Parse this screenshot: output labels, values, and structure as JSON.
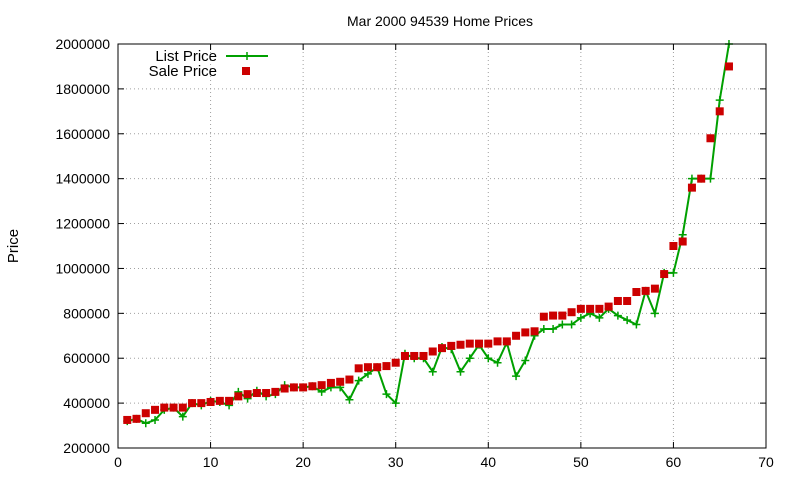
{
  "chart_data": {
    "type": "line",
    "title": "Mar 2000 94539 Home Prices",
    "xlabel": "",
    "ylabel": "Price",
    "xlim": [
      0,
      70
    ],
    "ylim": [
      200000,
      2000000
    ],
    "xticks": [
      0,
      10,
      20,
      30,
      40,
      50,
      60,
      70
    ],
    "yticks": [
      200000,
      400000,
      600000,
      800000,
      1000000,
      1200000,
      1400000,
      1600000,
      1800000,
      2000000
    ],
    "xtick_labels": [
      "0",
      "10",
      "20",
      "30",
      "40",
      "50",
      "60",
      "70"
    ],
    "ytick_labels": [
      "200000",
      "400000",
      "600000",
      "800000",
      "1000000",
      "1200000",
      "1400000",
      "1600000",
      "1800000",
      "2000000"
    ],
    "grid": true,
    "legend_position": "top-left",
    "series": [
      {
        "name": "List Price",
        "style": "line-with-plus-markers",
        "color": "#00a000",
        "x": [
          1,
          2,
          3,
          4,
          5,
          6,
          7,
          8,
          9,
          10,
          11,
          12,
          13,
          14,
          15,
          16,
          17,
          18,
          19,
          20,
          21,
          22,
          23,
          24,
          25,
          26,
          27,
          28,
          29,
          30,
          31,
          32,
          33,
          34,
          35,
          36,
          37,
          38,
          39,
          40,
          41,
          42,
          43,
          44,
          45,
          46,
          47,
          48,
          49,
          50,
          51,
          52,
          53,
          54,
          55,
          56,
          57,
          58,
          59,
          60,
          61,
          62,
          63,
          64,
          65,
          66
        ],
        "values": [
          320000,
          330000,
          310000,
          325000,
          370000,
          380000,
          340000,
          400000,
          390000,
          410000,
          405000,
          390000,
          450000,
          420000,
          455000,
          430000,
          440000,
          480000,
          470000,
          470000,
          475000,
          450000,
          470000,
          470000,
          415000,
          500000,
          530000,
          560000,
          440000,
          400000,
          620000,
          600000,
          600000,
          540000,
          650000,
          640000,
          540000,
          600000,
          660000,
          600000,
          580000,
          670000,
          520000,
          590000,
          700000,
          730000,
          730000,
          750000,
          750000,
          780000,
          800000,
          780000,
          820000,
          790000,
          770000,
          750000,
          900000,
          800000,
          980000,
          980000,
          1150000,
          1400000,
          1400000,
          1400000,
          1750000,
          2000000
        ]
      },
      {
        "name": "Sale Price",
        "style": "square-markers",
        "color": "#cc0000",
        "x": [
          1,
          2,
          3,
          4,
          5,
          6,
          7,
          8,
          9,
          10,
          11,
          12,
          13,
          14,
          15,
          16,
          17,
          18,
          19,
          20,
          21,
          22,
          23,
          24,
          25,
          26,
          27,
          28,
          29,
          30,
          31,
          32,
          33,
          34,
          35,
          36,
          37,
          38,
          39,
          40,
          41,
          42,
          43,
          44,
          45,
          46,
          47,
          48,
          49,
          50,
          51,
          52,
          53,
          54,
          55,
          56,
          57,
          58,
          59,
          60,
          61,
          62,
          63,
          64,
          65,
          66
        ],
        "values": [
          325000,
          330000,
          355000,
          370000,
          380000,
          380000,
          380000,
          400000,
          400000,
          405000,
          410000,
          410000,
          430000,
          440000,
          445000,
          445000,
          450000,
          465000,
          470000,
          470000,
          475000,
          480000,
          490000,
          495000,
          505000,
          555000,
          560000,
          560000,
          565000,
          580000,
          610000,
          610000,
          610000,
          630000,
          645000,
          655000,
          660000,
          665000,
          665000,
          665000,
          675000,
          675000,
          700000,
          715000,
          720000,
          785000,
          790000,
          790000,
          805000,
          820000,
          820000,
          820000,
          830000,
          855000,
          855000,
          895000,
          900000,
          910000,
          975000,
          1100000,
          1120000,
          1360000,
          1400000,
          1580000,
          1700000,
          1900000
        ]
      }
    ]
  }
}
